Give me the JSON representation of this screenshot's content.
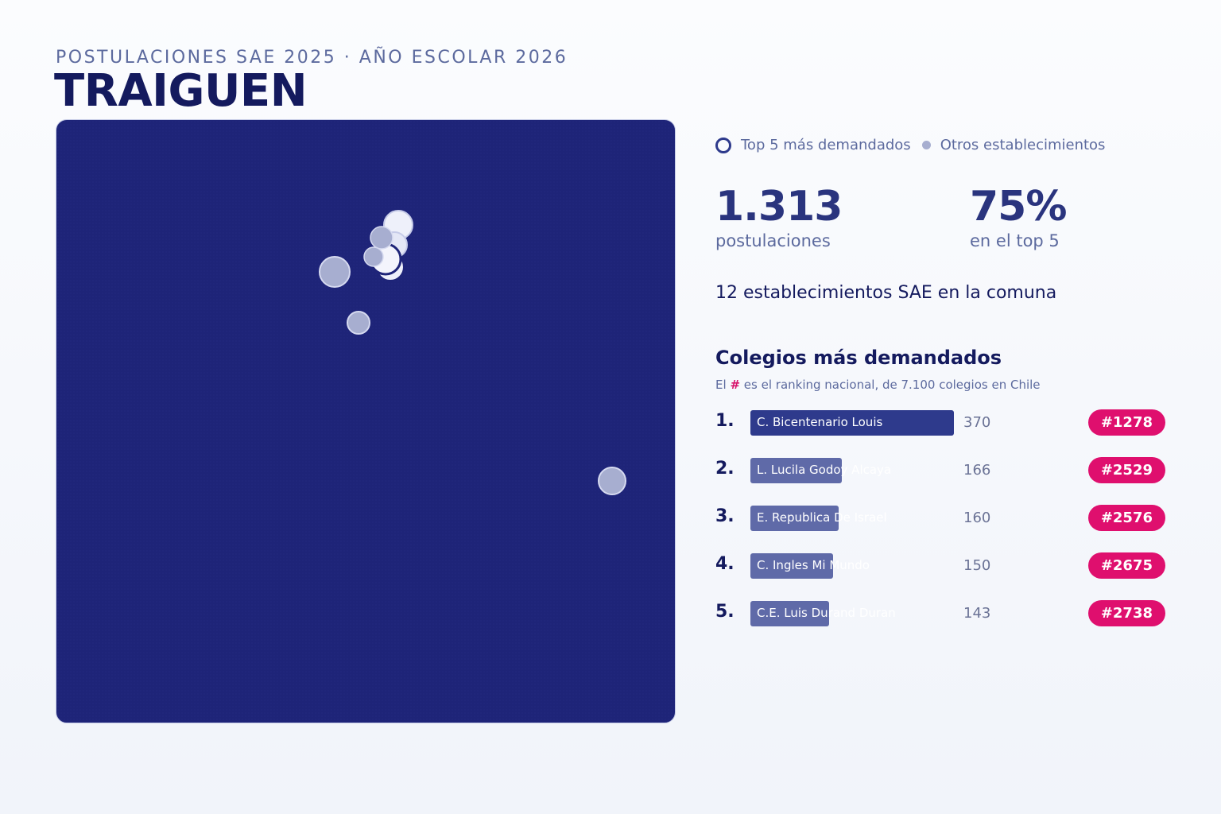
{
  "header": {
    "subtitle": "POSTULACIONES SAE 2025 · AÑO ESCOLAR 2026",
    "title": "TRAIGUEN"
  },
  "legend": {
    "top5_label": "Top 5 más demandados",
    "others_label": "Otros establecimientos"
  },
  "stats": {
    "total": "1.313",
    "total_label": "postulaciones",
    "top5_share": "75%",
    "top5_share_label": "en el top 5",
    "schools_line": "12 establecimientos SAE en la comuna"
  },
  "ranking": {
    "title": "Colegios más demandados",
    "note_prefix": "El",
    "note_hash": "#",
    "note_suffix": "es el ranking nacional, de 7.100 colegios en Chile",
    "items": [
      {
        "rank": "1.",
        "name": "C. Bicentenario Louis",
        "value": 370,
        "badge": "#1278"
      },
      {
        "rank": "2.",
        "name": "L. Lucila Godoy Alcaya",
        "value": 166,
        "badge": "#2529"
      },
      {
        "rank": "3.",
        "name": "E. Republica De Israel",
        "value": 160,
        "badge": "#2576"
      },
      {
        "rank": "4.",
        "name": "C. Ingles Mi Mundo",
        "value": 150,
        "badge": "#2675"
      },
      {
        "rank": "5.",
        "name": "C.E. Luis Durand Duran",
        "value": 143,
        "badge": "#2738"
      }
    ]
  },
  "chart_data": {
    "type": "bar",
    "categories": [
      "C. Bicentenario Louis",
      "L. Lucila Godoy Alcaya",
      "E. Republica De Israel",
      "C. Ingles Mi Mundo",
      "C.E. Luis Durand Duran"
    ],
    "values": [
      370,
      166,
      160,
      150,
      143
    ],
    "orientation": "horizontal"
  },
  "colors": {
    "map_bg": "#1e2478",
    "top_bar": "#2e3a8c",
    "other_bar": "#5f6aa8",
    "badge": "#df0f6e",
    "top_marker": "#eef0fa",
    "other_marker": "#a7aed0"
  }
}
